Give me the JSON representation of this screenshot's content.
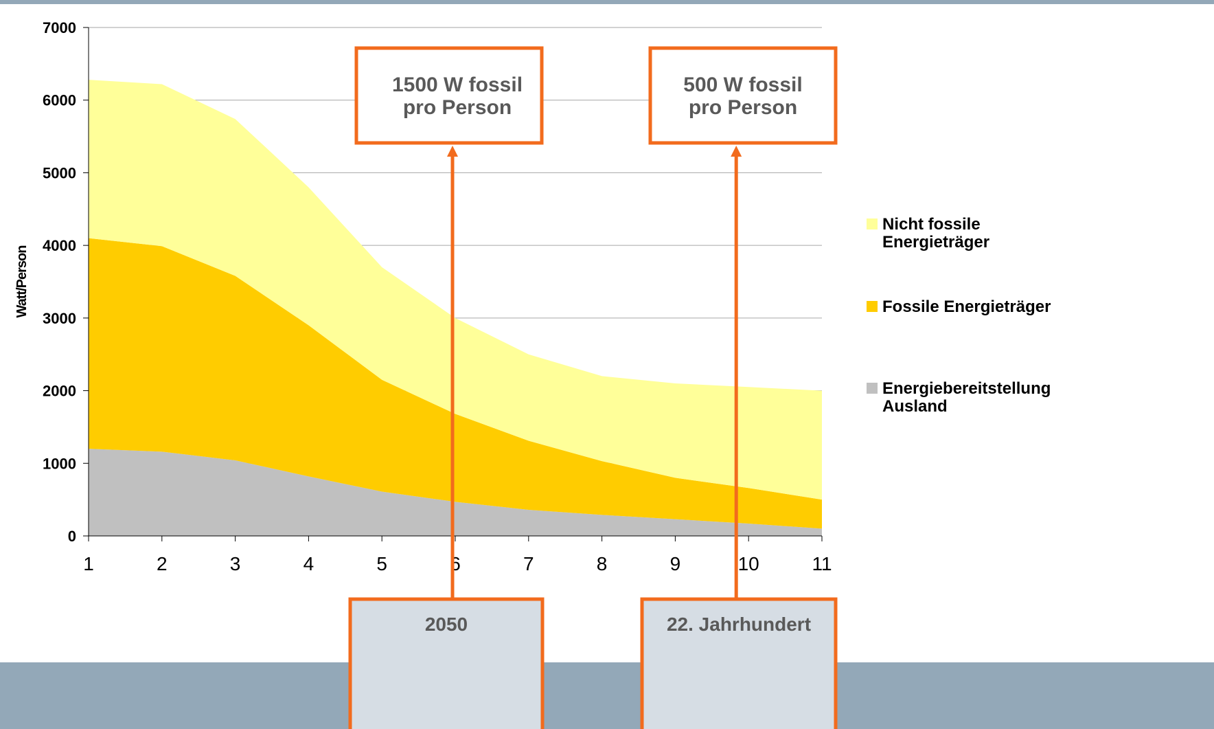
{
  "chart_data": {
    "type": "area",
    "stacked": true,
    "ylabel": "Watt/Person",
    "ylim": [
      0,
      7000
    ],
    "yticks": [
      0,
      1000,
      2000,
      3000,
      4000,
      5000,
      6000,
      7000
    ],
    "x": [
      1,
      2,
      3,
      4,
      5,
      6,
      7,
      8,
      9,
      10,
      11
    ],
    "grid": "horizontal",
    "legend_position": "right",
    "series": [
      {
        "name": "Energiebereitstellung Ausland",
        "color": "#c0c0c0",
        "values": [
          1200,
          1160,
          1040,
          820,
          610,
          470,
          360,
          290,
          230,
          170,
          100
        ]
      },
      {
        "name": "Fossile Energieträger",
        "color": "#ffcc00",
        "values": [
          2900,
          2830,
          2540,
          2080,
          1540,
          1210,
          950,
          740,
          570,
          490,
          400
        ]
      },
      {
        "name": "Nicht fossile Energieträger",
        "color": "#ffff99",
        "values": [
          2180,
          2230,
          2160,
          1900,
          1550,
          1320,
          1190,
          1170,
          1300,
          1390,
          1500
        ]
      }
    ],
    "legend": [
      {
        "lines": [
          "Nicht fossile",
          "Energieträger"
        ],
        "color": "#ffff99"
      },
      {
        "lines": [
          "Fossile Energieträger"
        ],
        "color": "#ffcc00"
      },
      {
        "lines": [
          "Energiebereitstellung",
          "Ausland"
        ],
        "color": "#c0c0c0"
      }
    ],
    "annotations": [
      {
        "lines": [
          "1500 W fossil",
          "pro Person"
        ],
        "x": 6,
        "label": "2050"
      },
      {
        "lines": [
          "500 W fossil",
          "pro Person"
        ],
        "x": 10,
        "label": "22. Jahrhundert"
      }
    ]
  },
  "colors": {
    "accent": "#f26b1d",
    "background": "#93a8b8",
    "footer_box": "#d6dde4",
    "callout_text": "#595959"
  }
}
